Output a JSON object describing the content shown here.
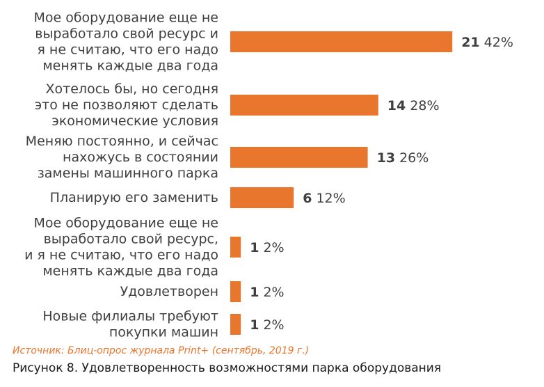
{
  "colors": {
    "bar": "#e8762d",
    "text": "#3f3f3f",
    "value": "#3f3f3f",
    "source": "#e8762d"
  },
  "chart_data": {
    "type": "bar",
    "orientation": "horizontal",
    "categories": [
      [
        "Мое оборудование еще не",
        "выработало свой ресурс и",
        "я не считаю, что его надо",
        "менять каждые два года"
      ],
      [
        "Хотелось бы, но сегодня",
        "это не позволяют сделать",
        "экономические условия"
      ],
      [
        "Меняю постоянно, и сейчас",
        "нахожусь в состоянии",
        "замены машинного парка"
      ],
      [
        "Планирую его заменить"
      ],
      [
        "Мое оборудование еще не",
        "выработало свой ресурс,",
        "и я не считаю, что его надо",
        "менять каждые два года"
      ],
      [
        "Удовлетворен"
      ],
      [
        "Новые филиалы требуют",
        "покупки машин"
      ]
    ],
    "values": [
      21,
      14,
      13,
      6,
      1,
      1,
      1
    ],
    "percent_labels": [
      "42%",
      "28%",
      "26%",
      "12%",
      "2%",
      "2%",
      "2%"
    ],
    "xlim": [
      0,
      21
    ],
    "grid": false,
    "legend": "none"
  },
  "source": "Источник: Блиц-опрос журнала Print+ (сентябрь, 2019 г.)",
  "caption": "Рисунок 8. Удовлетворенность возможностями парка оборудования"
}
